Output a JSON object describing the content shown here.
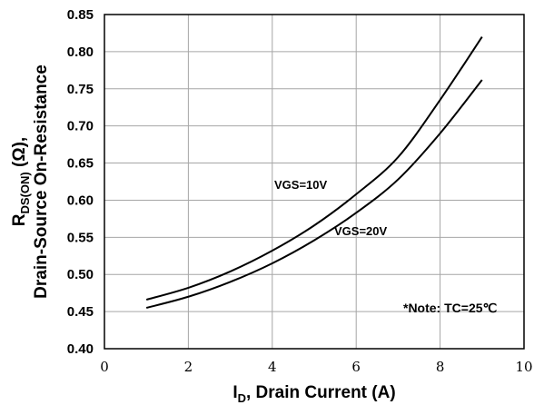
{
  "chart_data": {
    "type": "line",
    "xlabel": "I",
    "xlabel_sub": "D",
    "xlabel_rest": ", Drain Current (A)",
    "ylabel_line1": "R",
    "ylabel_line1_sub": "DS(ON)",
    "ylabel_line1_rest": " (Ω),",
    "ylabel_line2": "Drain-Source On-Resistance",
    "xlim": [
      0,
      10
    ],
    "ylim": [
      0.4,
      0.85
    ],
    "x_ticks": [
      "0",
      "2",
      "4",
      "6",
      "8",
      "10"
    ],
    "y_ticks": [
      "0.40",
      "0.45",
      "0.50",
      "0.55",
      "0.60",
      "0.65",
      "0.70",
      "0.75",
      "0.80",
      "0.85"
    ],
    "x_tick_values": [
      0,
      2,
      4,
      6,
      8,
      10
    ],
    "y_tick_values": [
      0.4,
      0.45,
      0.5,
      0.55,
      0.6,
      0.65,
      0.7,
      0.75,
      0.8,
      0.85
    ],
    "grid": true,
    "series": [
      {
        "name": "VGS=10V",
        "x": [
          1,
          2,
          3,
          4,
          5,
          6,
          7,
          8,
          9
        ],
        "y": [
          0.466,
          0.482,
          0.504,
          0.532,
          0.566,
          0.608,
          0.658,
          0.735,
          0.82
        ]
      },
      {
        "name": "VGS=20V",
        "x": [
          1,
          2,
          3,
          4,
          5,
          6,
          7,
          8,
          9
        ],
        "y": [
          0.455,
          0.47,
          0.49,
          0.515,
          0.546,
          0.583,
          0.628,
          0.69,
          0.762
        ]
      }
    ],
    "annotation": "*Note: TC=25℃",
    "line_color": "#000000",
    "grid_color": "#a6a6a6"
  }
}
